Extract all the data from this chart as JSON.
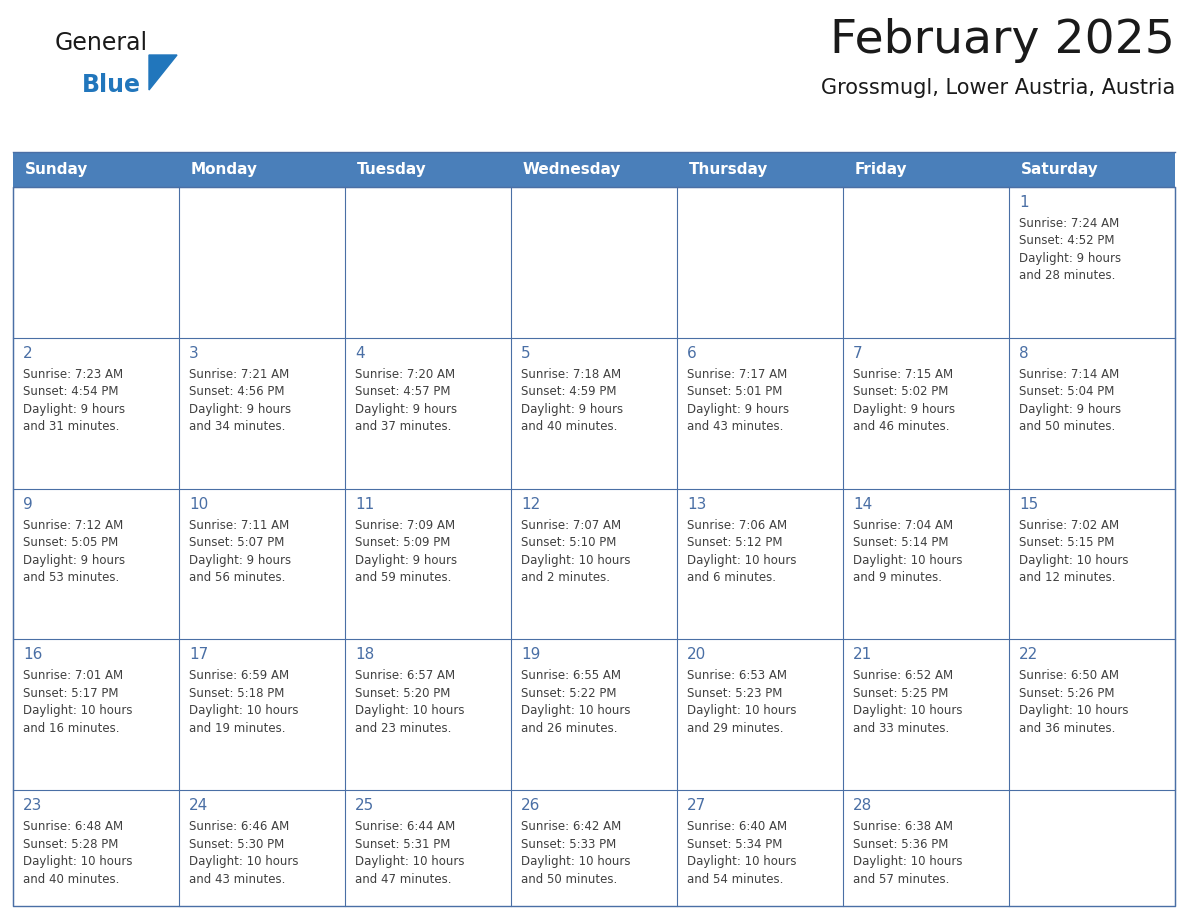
{
  "title": "February 2025",
  "subtitle": "Grossmugl, Lower Austria, Austria",
  "header_bg": "#4a7fba",
  "header_text_color": "#ffffff",
  "cell_bg": "#ffffff",
  "cell_border_color": "#4a6fa5",
  "row_divider_color": "#4a6fa5",
  "day_number_color": "#4a6fa5",
  "cell_text_color": "#404040",
  "days_of_week": [
    "Sunday",
    "Monday",
    "Tuesday",
    "Wednesday",
    "Thursday",
    "Friday",
    "Saturday"
  ],
  "logo_general_color": "#1a1a1a",
  "logo_blue_color": "#2176bc",
  "calendar_data": [
    [
      null,
      null,
      null,
      null,
      null,
      null,
      {
        "day": 1,
        "sunrise": "7:24 AM",
        "sunset": "4:52 PM",
        "daylight": "9 hours",
        "daylight2": "and 28 minutes."
      }
    ],
    [
      {
        "day": 2,
        "sunrise": "7:23 AM",
        "sunset": "4:54 PM",
        "daylight": "9 hours",
        "daylight2": "and 31 minutes."
      },
      {
        "day": 3,
        "sunrise": "7:21 AM",
        "sunset": "4:56 PM",
        "daylight": "9 hours",
        "daylight2": "and 34 minutes."
      },
      {
        "day": 4,
        "sunrise": "7:20 AM",
        "sunset": "4:57 PM",
        "daylight": "9 hours",
        "daylight2": "and 37 minutes."
      },
      {
        "day": 5,
        "sunrise": "7:18 AM",
        "sunset": "4:59 PM",
        "daylight": "9 hours",
        "daylight2": "and 40 minutes."
      },
      {
        "day": 6,
        "sunrise": "7:17 AM",
        "sunset": "5:01 PM",
        "daylight": "9 hours",
        "daylight2": "and 43 minutes."
      },
      {
        "day": 7,
        "sunrise": "7:15 AM",
        "sunset": "5:02 PM",
        "daylight": "9 hours",
        "daylight2": "and 46 minutes."
      },
      {
        "day": 8,
        "sunrise": "7:14 AM",
        "sunset": "5:04 PM",
        "daylight": "9 hours",
        "daylight2": "and 50 minutes."
      }
    ],
    [
      {
        "day": 9,
        "sunrise": "7:12 AM",
        "sunset": "5:05 PM",
        "daylight": "9 hours",
        "daylight2": "and 53 minutes."
      },
      {
        "day": 10,
        "sunrise": "7:11 AM",
        "sunset": "5:07 PM",
        "daylight": "9 hours",
        "daylight2": "and 56 minutes."
      },
      {
        "day": 11,
        "sunrise": "7:09 AM",
        "sunset": "5:09 PM",
        "daylight": "9 hours",
        "daylight2": "and 59 minutes."
      },
      {
        "day": 12,
        "sunrise": "7:07 AM",
        "sunset": "5:10 PM",
        "daylight": "10 hours",
        "daylight2": "and 2 minutes."
      },
      {
        "day": 13,
        "sunrise": "7:06 AM",
        "sunset": "5:12 PM",
        "daylight": "10 hours",
        "daylight2": "and 6 minutes."
      },
      {
        "day": 14,
        "sunrise": "7:04 AM",
        "sunset": "5:14 PM",
        "daylight": "10 hours",
        "daylight2": "and 9 minutes."
      },
      {
        "day": 15,
        "sunrise": "7:02 AM",
        "sunset": "5:15 PM",
        "daylight": "10 hours",
        "daylight2": "and 12 minutes."
      }
    ],
    [
      {
        "day": 16,
        "sunrise": "7:01 AM",
        "sunset": "5:17 PM",
        "daylight": "10 hours",
        "daylight2": "and 16 minutes."
      },
      {
        "day": 17,
        "sunrise": "6:59 AM",
        "sunset": "5:18 PM",
        "daylight": "10 hours",
        "daylight2": "and 19 minutes."
      },
      {
        "day": 18,
        "sunrise": "6:57 AM",
        "sunset": "5:20 PM",
        "daylight": "10 hours",
        "daylight2": "and 23 minutes."
      },
      {
        "day": 19,
        "sunrise": "6:55 AM",
        "sunset": "5:22 PM",
        "daylight": "10 hours",
        "daylight2": "and 26 minutes."
      },
      {
        "day": 20,
        "sunrise": "6:53 AM",
        "sunset": "5:23 PM",
        "daylight": "10 hours",
        "daylight2": "and 29 minutes."
      },
      {
        "day": 21,
        "sunrise": "6:52 AM",
        "sunset": "5:25 PM",
        "daylight": "10 hours",
        "daylight2": "and 33 minutes."
      },
      {
        "day": 22,
        "sunrise": "6:50 AM",
        "sunset": "5:26 PM",
        "daylight": "10 hours",
        "daylight2": "and 36 minutes."
      }
    ],
    [
      {
        "day": 23,
        "sunrise": "6:48 AM",
        "sunset": "5:28 PM",
        "daylight": "10 hours",
        "daylight2": "and 40 minutes."
      },
      {
        "day": 24,
        "sunrise": "6:46 AM",
        "sunset": "5:30 PM",
        "daylight": "10 hours",
        "daylight2": "and 43 minutes."
      },
      {
        "day": 25,
        "sunrise": "6:44 AM",
        "sunset": "5:31 PM",
        "daylight": "10 hours",
        "daylight2": "and 47 minutes."
      },
      {
        "day": 26,
        "sunrise": "6:42 AM",
        "sunset": "5:33 PM",
        "daylight": "10 hours",
        "daylight2": "and 50 minutes."
      },
      {
        "day": 27,
        "sunrise": "6:40 AM",
        "sunset": "5:34 PM",
        "daylight": "10 hours",
        "daylight2": "and 54 minutes."
      },
      {
        "day": 28,
        "sunrise": "6:38 AM",
        "sunset": "5:36 PM",
        "daylight": "10 hours",
        "daylight2": "and 57 minutes."
      },
      null
    ]
  ],
  "figsize": [
    11.88,
    9.18
  ],
  "dpi": 100
}
